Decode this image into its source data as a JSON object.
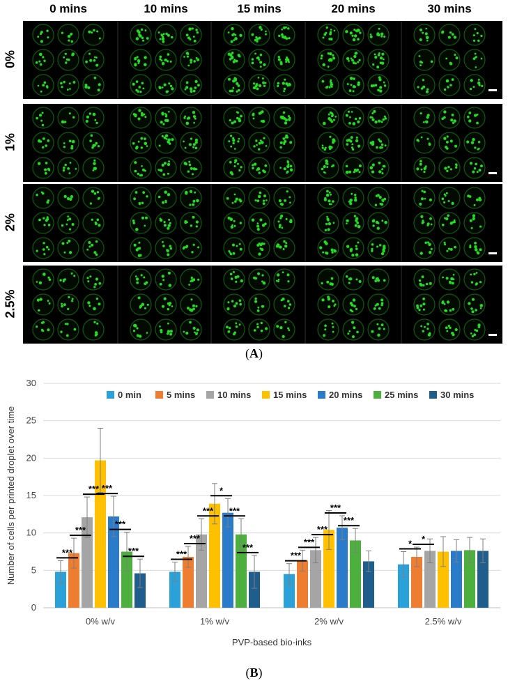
{
  "panel_a": {
    "time_headers": [
      "0 mins",
      "10 mins",
      "15 mins",
      "20 mins",
      "30 mins"
    ],
    "concentration_labels": [
      "0%",
      "1%",
      "2%",
      "2.5%"
    ],
    "caption": "A",
    "dot_color": "#22dd22",
    "ring_color": "#0f5a0f",
    "background_color": "#000000",
    "scale_bar_color": "#ffffff"
  },
  "caption_b": "B",
  "chart_data": {
    "type": "bar",
    "categories": [
      "0% w/v",
      "1% w/v",
      "2% w/v",
      "2.5% w/v"
    ],
    "xlabel": "PVP-based bio-inks",
    "ylabel": "Number of cells per printed droplet over time",
    "ylim": [
      0,
      30
    ],
    "yticks": [
      0,
      5,
      10,
      15,
      20,
      25,
      30
    ],
    "grid": true,
    "legend_position": "top",
    "series": [
      {
        "name": "0 min",
        "color": "#2aa1d8",
        "values": [
          4.8,
          4.8,
          4.5,
          5.8
        ],
        "errors": [
          1.5,
          1.3,
          1.4,
          1.7
        ]
      },
      {
        "name": "5 mins",
        "color": "#ed7d31",
        "values": [
          7.3,
          6.8,
          6.3,
          6.8
        ],
        "errors": [
          2.0,
          1.4,
          1.4,
          1.3
        ]
      },
      {
        "name": "10 mins",
        "color": "#a5a5a5",
        "values": [
          12.1,
          9.8,
          7.7,
          7.6
        ],
        "errors": [
          2.7,
          2.1,
          1.7,
          1.6
        ]
      },
      {
        "name": "15 mins",
        "color": "#ffc000",
        "values": [
          19.7,
          13.9,
          10.4,
          7.5
        ],
        "errors": [
          4.3,
          2.7,
          2.6,
          2.0
        ]
      },
      {
        "name": "20 mins",
        "color": "#2b7bcb",
        "values": [
          12.2,
          12.7,
          10.7,
          7.6
        ],
        "errors": [
          2.7,
          1.9,
          1.6,
          1.5
        ]
      },
      {
        "name": "25 mins",
        "color": "#4caf3e",
        "values": [
          7.5,
          9.8,
          9.0,
          7.7
        ],
        "errors": [
          2.6,
          2.1,
          1.6,
          1.7
        ]
      },
      {
        "name": "30 mins",
        "color": "#1f5e8c",
        "values": [
          4.6,
          4.8,
          6.2,
          7.6
        ],
        "errors": [
          1.9,
          2.2,
          1.4,
          1.6
        ]
      }
    ],
    "significance": [
      {
        "group": 0,
        "between": [
          0,
          1
        ],
        "label": "***"
      },
      {
        "group": 0,
        "between": [
          1,
          2
        ],
        "label": "***"
      },
      {
        "group": 0,
        "between": [
          2,
          3
        ],
        "label": "***"
      },
      {
        "group": 0,
        "between": [
          3,
          4
        ],
        "label": "***"
      },
      {
        "group": 0,
        "between": [
          4,
          5
        ],
        "label": "***"
      },
      {
        "group": 0,
        "between": [
          5,
          6
        ],
        "label": "***"
      },
      {
        "group": 1,
        "between": [
          0,
          1
        ],
        "label": "***"
      },
      {
        "group": 1,
        "between": [
          1,
          2
        ],
        "label": "***"
      },
      {
        "group": 1,
        "between": [
          2,
          3
        ],
        "label": "***"
      },
      {
        "group": 1,
        "between": [
          3,
          4
        ],
        "label": "*"
      },
      {
        "group": 1,
        "between": [
          4,
          5
        ],
        "label": "***"
      },
      {
        "group": 1,
        "between": [
          5,
          6
        ],
        "label": "***"
      },
      {
        "group": 2,
        "between": [
          0,
          1
        ],
        "label": "***"
      },
      {
        "group": 2,
        "between": [
          1,
          2
        ],
        "label": "***"
      },
      {
        "group": 2,
        "between": [
          2,
          3
        ],
        "label": "***"
      },
      {
        "group": 2,
        "between": [
          3,
          4
        ],
        "label": "***"
      },
      {
        "group": 2,
        "between": [
          4,
          5
        ],
        "label": "***"
      },
      {
        "group": 3,
        "between": [
          0,
          1
        ],
        "label": "*"
      },
      {
        "group": 3,
        "between": [
          1,
          2
        ],
        "label": "*"
      }
    ],
    "grid_color": "#d9d9d9",
    "error_bar_color": "#7f7f7f"
  }
}
